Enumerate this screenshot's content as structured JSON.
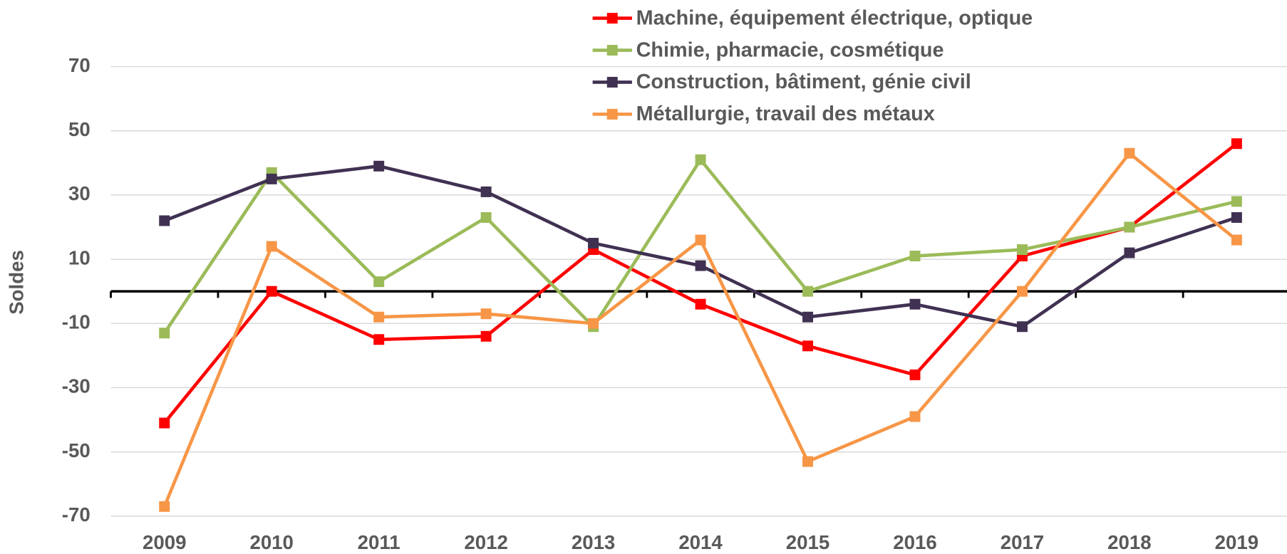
{
  "chart_data": {
    "type": "line",
    "y_label": "Soldes",
    "categories": [
      "2009",
      "2010",
      "2011",
      "2012",
      "2013",
      "2014",
      "2015",
      "2016",
      "2017",
      "2018",
      "2019"
    ],
    "series": [
      {
        "name": "Machine, équipement électrique, optique",
        "color": "#ff0000",
        "values": [
          -41,
          0,
          -15,
          -14,
          13,
          -4,
          -17,
          -26,
          11,
          20,
          46
        ]
      },
      {
        "name": "Chimie, pharmacie, cosmétique",
        "color": "#9bbb59",
        "values": [
          -13,
          37,
          3,
          23,
          -11,
          41,
          0,
          11,
          13,
          20,
          28
        ]
      },
      {
        "name": "Construction, bâtiment, génie civil",
        "color": "#403152",
        "values": [
          22,
          35,
          39,
          31,
          15,
          8,
          -8,
          -4,
          -11,
          12,
          23
        ]
      },
      {
        "name": "Métallurgie, travail des métaux",
        "color": "#f79646",
        "values": [
          -67,
          14,
          -8,
          -7,
          -10,
          16,
          -53,
          -39,
          0,
          43,
          16
        ]
      }
    ],
    "ylim": [
      -72,
      80
    ],
    "yticks": [
      -70,
      -50,
      -30,
      -10,
      10,
      30,
      50,
      70
    ],
    "grid": true,
    "legend": "top"
  }
}
